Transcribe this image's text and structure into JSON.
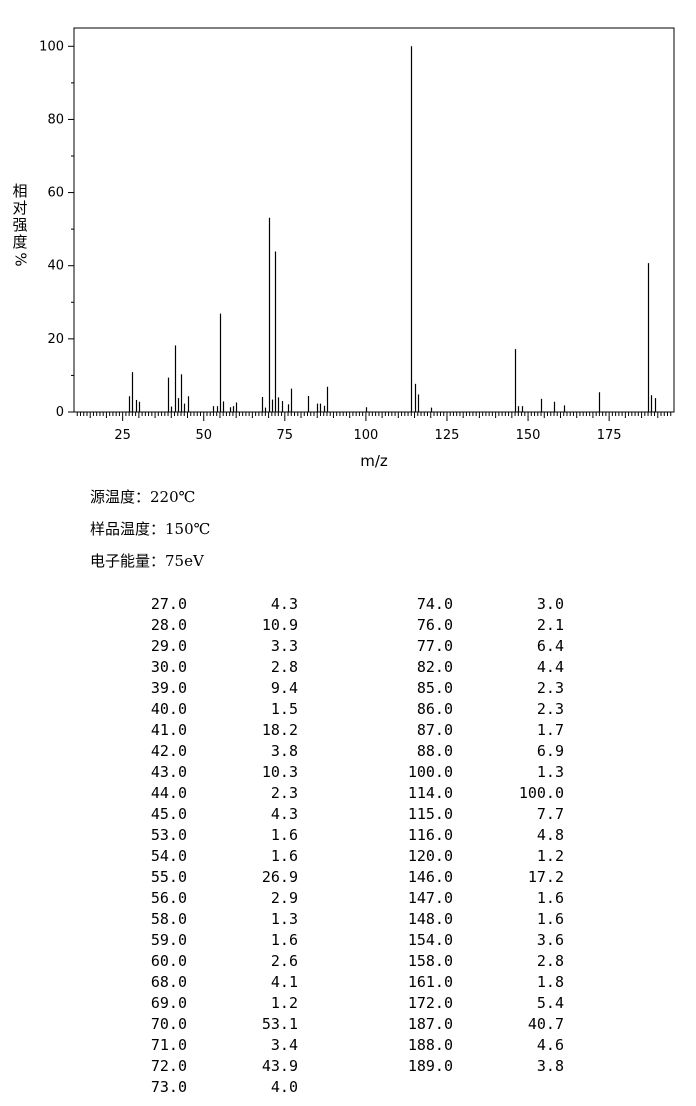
{
  "chart_data": {
    "type": "bar",
    "title": "",
    "xlabel": "m/z",
    "ylabel_chars": [
      "相",
      "对",
      "强",
      "度",
      "%"
    ],
    "xlim": [
      10,
      195
    ],
    "ylim": [
      0,
      105
    ],
    "xticks": [
      25,
      50,
      75,
      100,
      125,
      150,
      175
    ],
    "yticks": [
      0,
      20,
      40,
      60,
      80,
      100
    ],
    "x": [
      27,
      28,
      29,
      30,
      39,
      40,
      41,
      42,
      43,
      44,
      45,
      53,
      54,
      55,
      56,
      58,
      59,
      60,
      68,
      69,
      70,
      71,
      72,
      73,
      74,
      76,
      77,
      82,
      85,
      86,
      87,
      88,
      100,
      114,
      115,
      116,
      120,
      146,
      147,
      148,
      154,
      158,
      161,
      172,
      187,
      188,
      189
    ],
    "values": [
      4.3,
      10.9,
      3.3,
      2.8,
      9.4,
      1.5,
      18.2,
      3.8,
      10.3,
      2.3,
      4.3,
      1.6,
      1.6,
      26.9,
      2.9,
      1.3,
      1.6,
      2.6,
      4.1,
      1.2,
      53.1,
      3.4,
      43.9,
      4.0,
      3.0,
      2.1,
      6.4,
      4.4,
      2.3,
      2.3,
      1.7,
      6.9,
      1.3,
      100.0,
      7.7,
      4.8,
      1.2,
      17.2,
      1.6,
      1.6,
      3.6,
      2.8,
      1.8,
      5.4,
      40.7,
      4.6,
      3.8
    ]
  },
  "conditions": {
    "source_temp": "源温度：220℃",
    "sample_temp": "样品温度：150℃",
    "electron_energy": "电子能量：75eV"
  },
  "peak_table": {
    "left": [
      [
        "27.0",
        "4.3"
      ],
      [
        "28.0",
        "10.9"
      ],
      [
        "29.0",
        "3.3"
      ],
      [
        "30.0",
        "2.8"
      ],
      [
        "39.0",
        "9.4"
      ],
      [
        "40.0",
        "1.5"
      ],
      [
        "41.0",
        "18.2"
      ],
      [
        "42.0",
        "3.8"
      ],
      [
        "43.0",
        "10.3"
      ],
      [
        "44.0",
        "2.3"
      ],
      [
        "45.0",
        "4.3"
      ],
      [
        "53.0",
        "1.6"
      ],
      [
        "54.0",
        "1.6"
      ],
      [
        "55.0",
        "26.9"
      ],
      [
        "56.0",
        "2.9"
      ],
      [
        "58.0",
        "1.3"
      ],
      [
        "59.0",
        "1.6"
      ],
      [
        "60.0",
        "2.6"
      ],
      [
        "68.0",
        "4.1"
      ],
      [
        "69.0",
        "1.2"
      ],
      [
        "70.0",
        "53.1"
      ],
      [
        "71.0",
        "3.4"
      ],
      [
        "72.0",
        "43.9"
      ],
      [
        "73.0",
        "4.0"
      ]
    ],
    "right": [
      [
        "74.0",
        "3.0"
      ],
      [
        "76.0",
        "2.1"
      ],
      [
        "77.0",
        "6.4"
      ],
      [
        "82.0",
        "4.4"
      ],
      [
        "85.0",
        "2.3"
      ],
      [
        "86.0",
        "2.3"
      ],
      [
        "87.0",
        "1.7"
      ],
      [
        "88.0",
        "6.9"
      ],
      [
        "100.0",
        "1.3"
      ],
      [
        "114.0",
        "100.0"
      ],
      [
        "115.0",
        "7.7"
      ],
      [
        "116.0",
        "4.8"
      ],
      [
        "120.0",
        "1.2"
      ],
      [
        "146.0",
        "17.2"
      ],
      [
        "147.0",
        "1.6"
      ],
      [
        "148.0",
        "1.6"
      ],
      [
        "154.0",
        "3.6"
      ],
      [
        "158.0",
        "2.8"
      ],
      [
        "161.0",
        "1.8"
      ],
      [
        "172.0",
        "5.4"
      ],
      [
        "187.0",
        "40.7"
      ],
      [
        "188.0",
        "4.6"
      ],
      [
        "189.0",
        "3.8"
      ]
    ]
  }
}
